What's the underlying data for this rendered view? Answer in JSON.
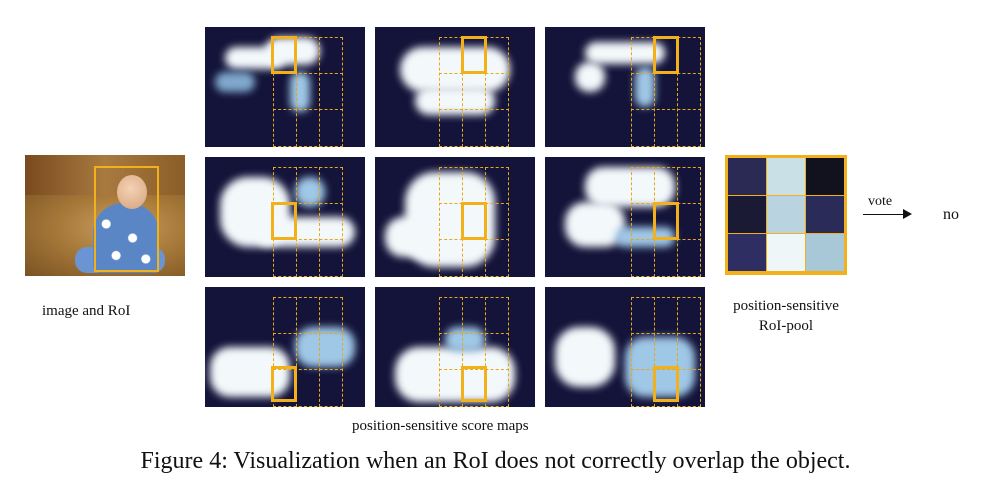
{
  "labels": {
    "image_and_roi": "image and RoI",
    "score_maps": "position-sensitive score maps",
    "pool_line1": "position-sensitive",
    "pool_line2": "RoI-pool",
    "vote": "vote",
    "result": "no"
  },
  "caption": "Figure 4: Visualization when an RoI does not correctly overlap the object.",
  "colors": {
    "roi": "#f2b11b",
    "map_background": "#14143a",
    "map_highlight": "#f3f8fb"
  },
  "pool_cells": [
    [
      "#2a2a55",
      "#c8e0e6",
      "#12121f"
    ],
    [
      "#1a1a35",
      "#b9d4e0",
      "#2b2b5a"
    ],
    [
      "#2e2e63",
      "#eef6f7",
      "#a8c8d8"
    ]
  ]
}
